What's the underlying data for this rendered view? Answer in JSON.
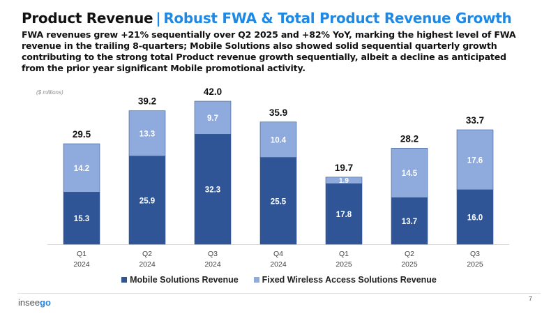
{
  "header": {
    "title": "Product Revenue",
    "separator": "|",
    "subtitle": "Robust FWA & Total Product Revenue Growth",
    "description": "FWA revenues grew +21% sequentially over Q2 2025 and +82% YoY, marking the highest level of FWA revenue in the trailing 8-quarters; Mobile Solutions also showed solid sequential quarterly growth contributing to the strong total Product revenue growth sequentially, albeit a decline as anticipated from the prior year significant Mobile promotional activity."
  },
  "footer": {
    "logo_prefix": "insee",
    "logo_suffix": "go",
    "page_number": "7"
  },
  "colors": {
    "mobile": "#2f5597",
    "fwa": "#8faadc",
    "accent": "#1e88e5"
  },
  "chart_data": {
    "type": "bar",
    "stacked": true,
    "units_label": "($ millions)",
    "categories": [
      [
        "Q1",
        "2024"
      ],
      [
        "Q2",
        "2024"
      ],
      [
        "Q3",
        "2024"
      ],
      [
        "Q4",
        "2024"
      ],
      [
        "Q1",
        "2025"
      ],
      [
        "Q2",
        "2025"
      ],
      [
        "Q3",
        "2025"
      ]
    ],
    "series": [
      {
        "name": "Mobile Solutions Revenue",
        "values": [
          15.3,
          25.9,
          32.3,
          25.5,
          17.8,
          13.7,
          16.0
        ]
      },
      {
        "name": "Fixed Wireless Access Solutions Revenue",
        "values": [
          14.2,
          13.3,
          9.7,
          10.4,
          1.9,
          14.5,
          17.6
        ]
      }
    ],
    "totals": [
      "29.5",
      "39.2",
      "42.0",
      "35.9",
      "19.7",
      "28.2",
      "33.7"
    ],
    "ylim": [
      0,
      42
    ],
    "grid": false,
    "legend": "bottom",
    "title": "",
    "xlabel": "",
    "ylabel": ""
  }
}
